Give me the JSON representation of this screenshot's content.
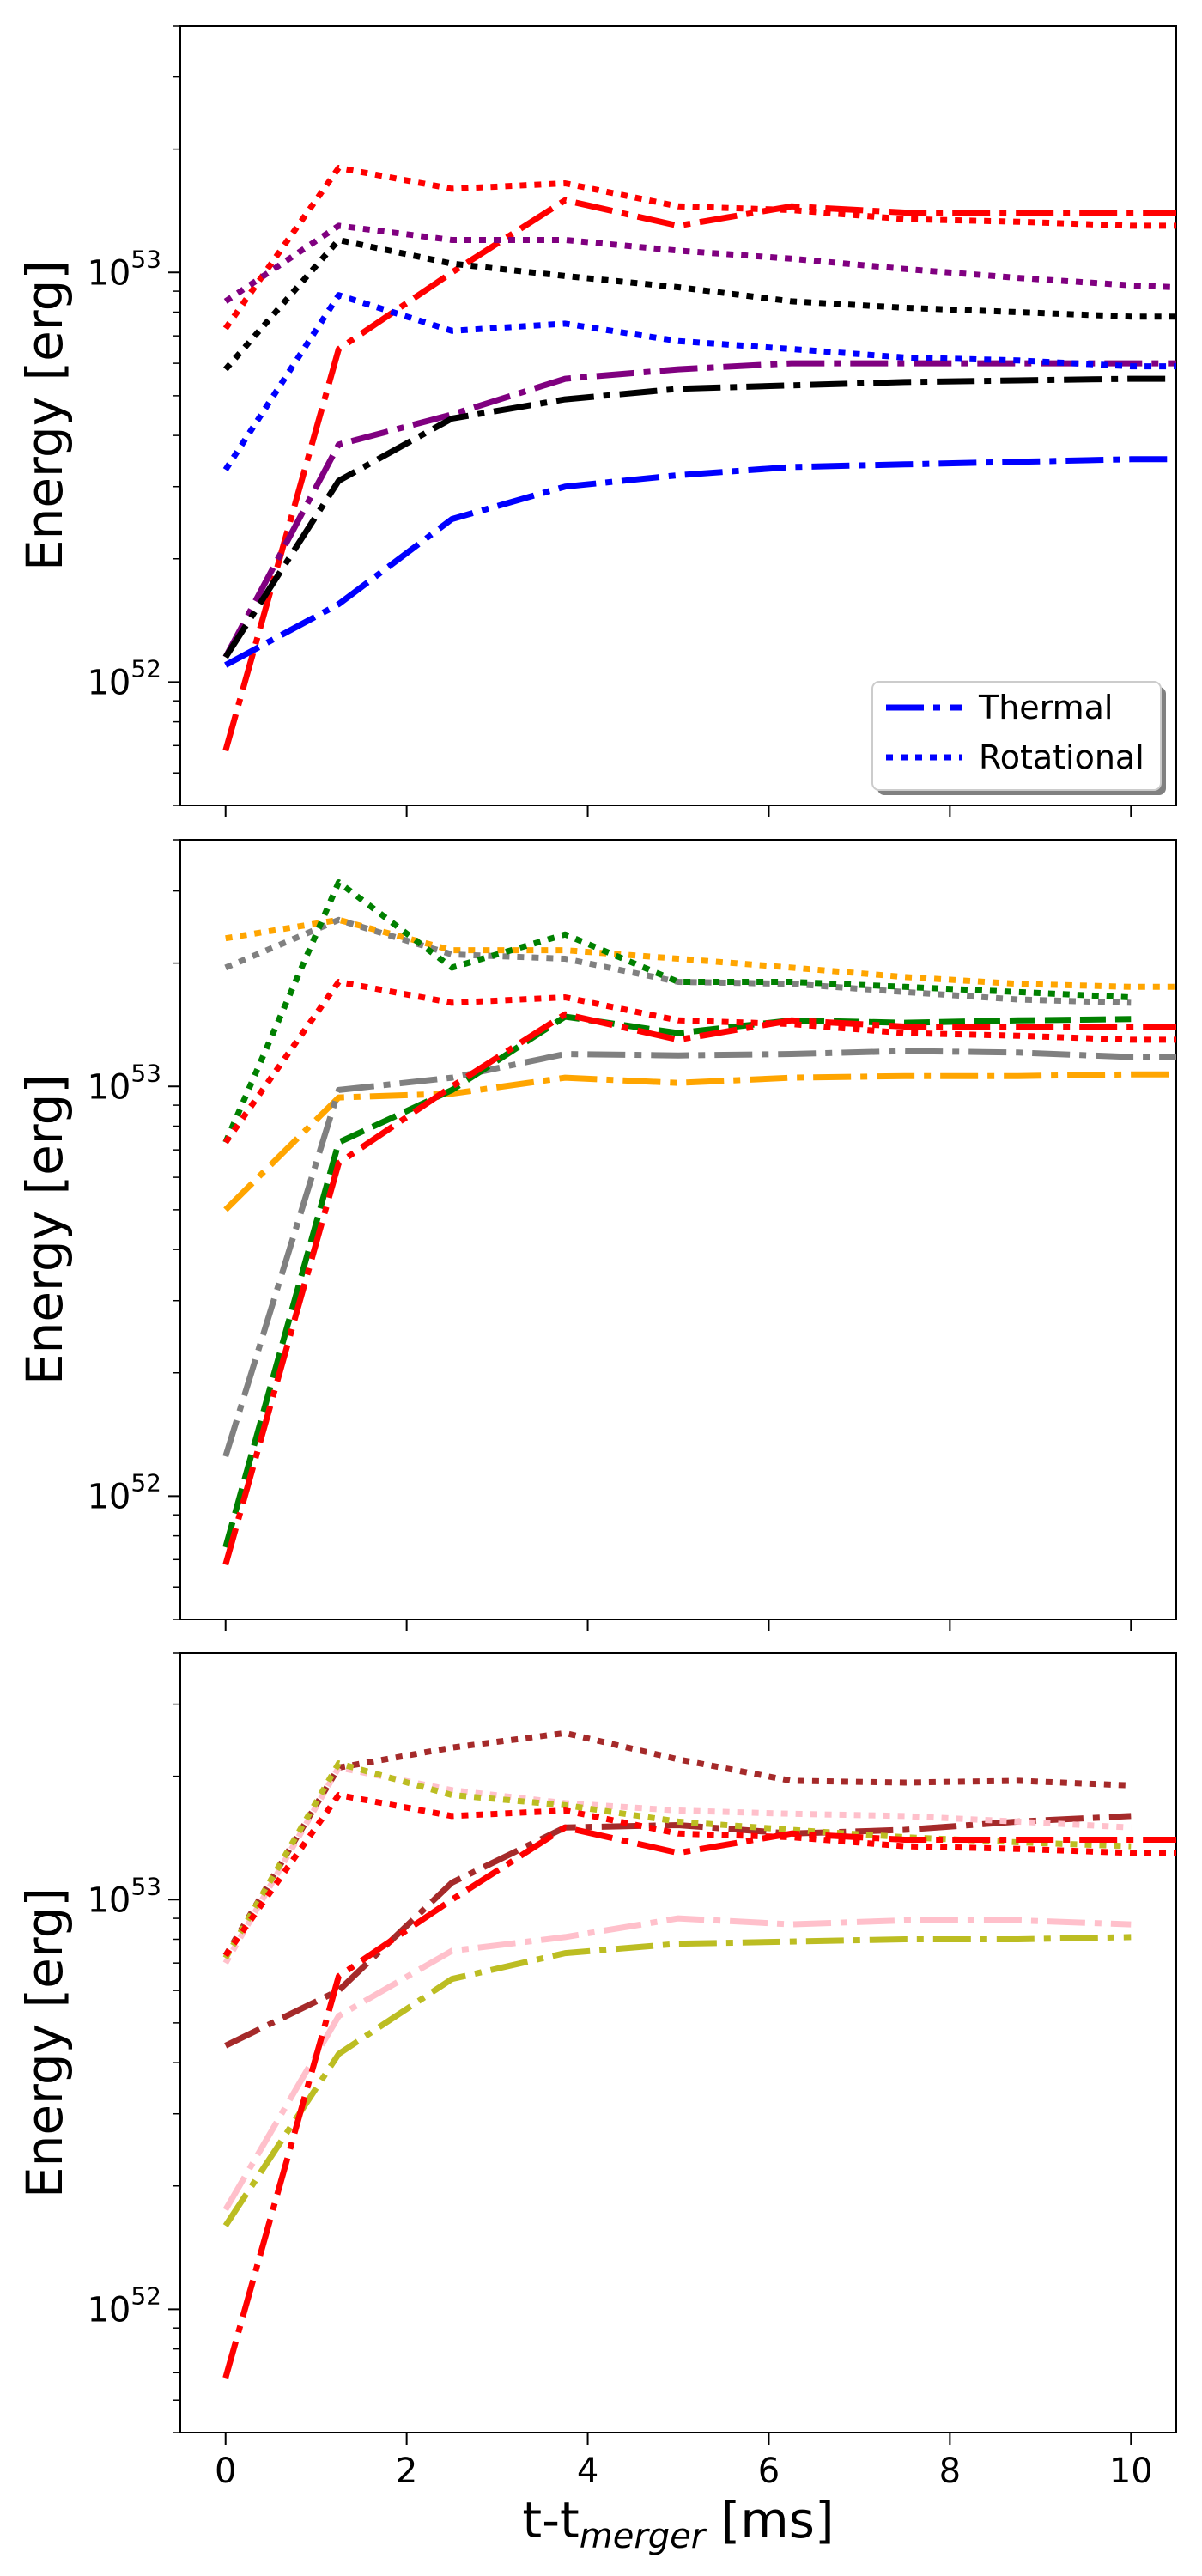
{
  "chart_data": [
    {
      "type": "line",
      "ylabel": "Energy [erg]",
      "yscale": "log",
      "ylim": [
        5e+51,
        4e+53
      ],
      "xlim": [
        -0.5,
        10.5
      ],
      "yticks": [
        {
          "value": 1e+52,
          "base": "10",
          "exp": "52"
        },
        {
          "value": 1e+53,
          "base": "10",
          "exp": "53"
        }
      ],
      "legend": {
        "position": "lower right",
        "entries": [
          {
            "label": "Thermal",
            "style": "dashdot",
            "color": "#0000ff"
          },
          {
            "label": "Rotational",
            "style": "dotted",
            "color": "#0000ff"
          }
        ]
      },
      "series": [
        {
          "name": "red thermal",
          "color": "#ff0000",
          "style": "dashdot",
          "x": [
            0,
            1.25,
            2.5,
            3.75,
            5,
            6.25,
            7.5,
            8.75,
            10,
            10.5
          ],
          "y": [
            6.8e+51,
            6.5e+52,
            1e+53,
            1.5e+53,
            1.3e+53,
            1.45e+53,
            1.4e+53,
            1.4e+53,
            1.4e+53,
            1.4e+53
          ]
        },
        {
          "name": "red rotational",
          "color": "#ff0000",
          "style": "dotted",
          "x": [
            0,
            1.25,
            2.5,
            3.75,
            5,
            6.25,
            7.5,
            8.75,
            10,
            10.5
          ],
          "y": [
            7.3e+52,
            1.8e+53,
            1.6e+53,
            1.65e+53,
            1.45e+53,
            1.42e+53,
            1.35e+53,
            1.33e+53,
            1.3e+53,
            1.3e+53
          ]
        },
        {
          "name": "purple thermal",
          "color": "#800080",
          "style": "dashdot",
          "x": [
            0,
            1.25,
            2.5,
            3.75,
            5,
            6.25,
            7.5,
            8.75,
            10,
            10.5
          ],
          "y": [
            1.15e+52,
            3.8e+52,
            4.5e+52,
            5.5e+52,
            5.8e+52,
            6e+52,
            6e+52,
            6e+52,
            6e+52,
            6e+52
          ]
        },
        {
          "name": "purple rotational",
          "color": "#800080",
          "style": "dotted",
          "x": [
            0,
            1.25,
            2.5,
            3.75,
            5,
            6.25,
            7.5,
            8.75,
            10,
            10.5
          ],
          "y": [
            8.5e+52,
            1.3e+53,
            1.2e+53,
            1.2e+53,
            1.13e+53,
            1.08e+53,
            1.02e+53,
            9.7e+52,
            9.3e+52,
            9.2e+52
          ]
        },
        {
          "name": "black thermal",
          "color": "#000000",
          "style": "dashdot",
          "x": [
            0,
            1.25,
            2.5,
            3.75,
            5,
            6.25,
            7.5,
            8.75,
            10,
            10.5
          ],
          "y": [
            1.15e+52,
            3.1e+52,
            4.4e+52,
            4.9e+52,
            5.2e+52,
            5.3e+52,
            5.4e+52,
            5.45e+52,
            5.5e+52,
            5.5e+52
          ]
        },
        {
          "name": "black rotational",
          "color": "#000000",
          "style": "dotted",
          "x": [
            0,
            1.25,
            2.5,
            3.75,
            5,
            6.25,
            7.5,
            8.75,
            10,
            10.5
          ],
          "y": [
            5.8e+52,
            1.2e+53,
            1.05e+53,
            9.8e+52,
            9.2e+52,
            8.5e+52,
            8.2e+52,
            8e+52,
            7.8e+52,
            7.8e+52
          ]
        },
        {
          "name": "blue thermal",
          "color": "#0000ff",
          "style": "dashdot",
          "x": [
            0,
            1.25,
            2.5,
            3.75,
            5,
            6.25,
            7.5,
            8.75,
            10,
            10.5
          ],
          "y": [
            1.1e+52,
            1.55e+52,
            2.5e+52,
            3e+52,
            3.2e+52,
            3.35e+52,
            3.4e+52,
            3.45e+52,
            3.5e+52,
            3.5e+52
          ]
        },
        {
          "name": "blue rotational",
          "color": "#0000ff",
          "style": "dotted",
          "x": [
            0,
            1.25,
            2.5,
            3.75,
            5,
            6.25,
            7.5,
            8.75,
            10,
            10.5
          ],
          "y": [
            3.3e+52,
            8.8e+52,
            7.2e+52,
            7.5e+52,
            6.8e+52,
            6.5e+52,
            6.2e+52,
            6.1e+52,
            5.9e+52,
            5.9e+52
          ]
        }
      ]
    },
    {
      "type": "line",
      "ylabel": "Energy [erg]",
      "yscale": "log",
      "ylim": [
        5e+51,
        4e+53
      ],
      "xlim": [
        -0.5,
        10.5
      ],
      "yticks": [
        {
          "value": 1e+52,
          "base": "10",
          "exp": "52"
        },
        {
          "value": 1e+53,
          "base": "10",
          "exp": "53"
        }
      ],
      "series": [
        {
          "name": "orange thermal",
          "color": "#ffa500",
          "style": "dashdot",
          "x": [
            0,
            1.25,
            2.5,
            3.75,
            5,
            6.25,
            7.5,
            8.75,
            10,
            10.5
          ],
          "y": [
            5e+52,
            9.4e+52,
            9.6e+52,
            1.05e+53,
            1.02e+53,
            1.05e+53,
            1.06e+53,
            1.06e+53,
            1.07e+53,
            1.07e+53
          ]
        },
        {
          "name": "orange rotational",
          "color": "#ffa500",
          "style": "dotted",
          "x": [
            0,
            1.25,
            2.5,
            3.75,
            5,
            6.25,
            7.5,
            8.75,
            10,
            10.5
          ],
          "y": [
            2.3e+53,
            2.55e+53,
            2.15e+53,
            2.15e+53,
            2.05e+53,
            1.95e+53,
            1.85e+53,
            1.78e+53,
            1.75e+53,
            1.75e+53
          ]
        },
        {
          "name": "gray thermal",
          "color": "#808080",
          "style": "dashdot",
          "x": [
            0,
            1.25,
            2.5,
            3.75,
            5,
            6.25,
            7.5,
            8.75,
            10,
            10.5
          ],
          "y": [
            1.25e+52,
            9.8e+52,
            1.05e+53,
            1.2e+53,
            1.19e+53,
            1.2e+53,
            1.22e+53,
            1.21e+53,
            1.18e+53,
            1.18e+53
          ]
        },
        {
          "name": "gray rotational",
          "color": "#808080",
          "style": "dotted",
          "x": [
            0,
            1.25,
            2.5,
            3.75,
            5,
            6.25,
            7.5,
            8.75,
            10
          ],
          "y": [
            1.95e+53,
            2.55e+53,
            2.1e+53,
            2.05e+53,
            1.8e+53,
            1.78e+53,
            1.7e+53,
            1.63e+53,
            1.6e+53
          ]
        },
        {
          "name": "green thermal",
          "color": "#008000",
          "style": "dashed",
          "x": [
            0,
            1.25,
            2.5,
            3.75,
            5,
            6.25,
            7.5,
            8.75,
            10
          ],
          "y": [
            7.5e+51,
            7.3e+52,
            9.8e+52,
            1.48e+53,
            1.35e+53,
            1.45e+53,
            1.43e+53,
            1.45e+53,
            1.46e+53
          ]
        },
        {
          "name": "green rotational",
          "color": "#008000",
          "style": "dotted",
          "x": [
            0,
            1.25,
            2.5,
            3.75,
            5,
            6.25,
            7.5,
            8.75,
            10
          ],
          "y": [
            7.3e+52,
            3.15e+53,
            1.95e+53,
            2.35e+53,
            1.8e+53,
            1.8e+53,
            1.75e+53,
            1.7e+53,
            1.65e+53
          ]
        },
        {
          "name": "red thermal",
          "color": "#ff0000",
          "style": "dashdot",
          "x": [
            0,
            1.25,
            2.5,
            3.75,
            5,
            6.25,
            7.5,
            8.75,
            10,
            10.5
          ],
          "y": [
            6.8e+51,
            6.5e+52,
            1e+53,
            1.5e+53,
            1.3e+53,
            1.45e+53,
            1.4e+53,
            1.4e+53,
            1.4e+53,
            1.4e+53
          ]
        },
        {
          "name": "red rotational",
          "color": "#ff0000",
          "style": "dotted",
          "x": [
            0,
            1.25,
            2.5,
            3.75,
            5,
            6.25,
            7.5,
            8.75,
            10,
            10.5
          ],
          "y": [
            7.3e+52,
            1.8e+53,
            1.6e+53,
            1.65e+53,
            1.45e+53,
            1.42e+53,
            1.35e+53,
            1.33e+53,
            1.3e+53,
            1.3e+53
          ]
        }
      ]
    },
    {
      "type": "line",
      "ylabel": "Energy [erg]",
      "xlabel_main": "t-t",
      "xlabel_sub": "merger",
      "xlabel_tail": " [ms]",
      "yscale": "log",
      "ylim": [
        5e+51,
        4e+53
      ],
      "xlim": [
        -0.5,
        10.5
      ],
      "xticks": [
        0,
        2,
        4,
        6,
        8,
        10
      ],
      "yticks": [
        {
          "value": 1e+52,
          "base": "10",
          "exp": "52"
        },
        {
          "value": 1e+53,
          "base": "10",
          "exp": "53"
        }
      ],
      "series": [
        {
          "name": "brown thermal",
          "color": "#a52a2a",
          "style": "dashdot",
          "x": [
            0,
            1.25,
            2.5,
            3.75,
            5,
            6.25,
            7.5,
            8.75,
            10
          ],
          "y": [
            4.4e+52,
            6e+52,
            1.1e+53,
            1.5e+53,
            1.52e+53,
            1.45e+53,
            1.48e+53,
            1.55e+53,
            1.6e+53
          ]
        },
        {
          "name": "brown rotational",
          "color": "#a52a2a",
          "style": "dotted",
          "x": [
            0,
            1.25,
            2.5,
            3.75,
            5,
            6.25,
            7.5,
            8.75,
            10
          ],
          "y": [
            7.3e+52,
            2.1e+53,
            2.35e+53,
            2.55e+53,
            2.2e+53,
            1.95e+53,
            1.93e+53,
            1.95e+53,
            1.9e+53
          ]
        },
        {
          "name": "pink thermal",
          "color": "#ffc0cb",
          "style": "dashdot",
          "x": [
            0,
            1.25,
            2.5,
            3.75,
            5,
            6.25,
            7.5,
            8.75,
            10
          ],
          "y": [
            1.75e+52,
            5.2e+52,
            7.5e+52,
            8.1e+52,
            9e+52,
            8.7e+52,
            8.9e+52,
            8.9e+52,
            8.7e+52
          ]
        },
        {
          "name": "pink rotational",
          "color": "#ffc0cb",
          "style": "dotted",
          "x": [
            0,
            1.25,
            2.5,
            3.75,
            5,
            6.25,
            7.5,
            8.75,
            10
          ],
          "y": [
            7e+52,
            2.1e+53,
            1.85e+53,
            1.72e+53,
            1.65e+53,
            1.62e+53,
            1.6e+53,
            1.55e+53,
            1.5e+53
          ]
        },
        {
          "name": "olive thermal",
          "color": "#bcbd22",
          "style": "dashdot",
          "x": [
            0,
            1.25,
            2.5,
            3.75,
            5,
            6.25,
            7.5,
            8.75,
            10
          ],
          "y": [
            1.6e+52,
            4.2e+52,
            6.4e+52,
            7.4e+52,
            7.8e+52,
            7.9e+52,
            8e+52,
            8e+52,
            8.1e+52
          ]
        },
        {
          "name": "olive rotational",
          "color": "#bcbd22",
          "style": "dotted",
          "x": [
            0,
            1.25,
            2.5,
            3.75,
            5,
            6.25,
            7.5,
            8.75,
            10
          ],
          "y": [
            7.2e+52,
            2.15e+53,
            1.8e+53,
            1.7e+53,
            1.55e+53,
            1.48e+53,
            1.42e+53,
            1.38e+53,
            1.35e+53
          ]
        },
        {
          "name": "red thermal",
          "color": "#ff0000",
          "style": "dashdot",
          "x": [
            0,
            1.25,
            2.5,
            3.75,
            5,
            6.25,
            7.5,
            8.75,
            10,
            10.5
          ],
          "y": [
            6.8e+51,
            6.5e+52,
            1e+53,
            1.5e+53,
            1.3e+53,
            1.45e+53,
            1.4e+53,
            1.4e+53,
            1.4e+53,
            1.4e+53
          ]
        },
        {
          "name": "red rotational",
          "color": "#ff0000",
          "style": "dotted",
          "x": [
            0,
            1.25,
            2.5,
            3.75,
            5,
            6.25,
            7.5,
            8.75,
            10,
            10.5
          ],
          "y": [
            7.3e+52,
            1.8e+53,
            1.6e+53,
            1.65e+53,
            1.45e+53,
            1.42e+53,
            1.35e+53,
            1.33e+53,
            1.3e+53,
            1.3e+53
          ]
        }
      ]
    }
  ]
}
